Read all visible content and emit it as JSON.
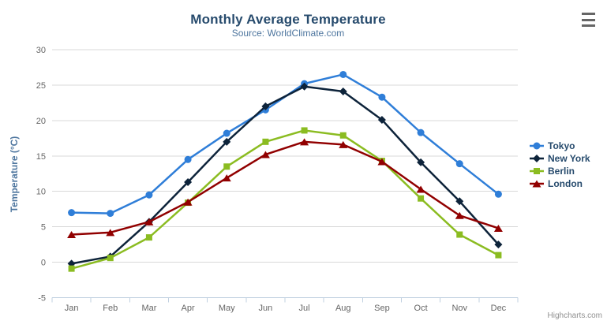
{
  "header": {
    "title": "Monthly Average Temperature",
    "subtitle": "Source: WorldClimate.com"
  },
  "menu_icon": "hamburger-icon",
  "credits_label": "Highcharts.com",
  "colors": {
    "title_text": "#274b6d",
    "subtitle_text": "#4d759e",
    "axis_title_text": "#4d759e",
    "axis_label_text": "#666666",
    "gridline": "#d8d8d8",
    "axis_line": "#c0d0e0",
    "legend_text": "#274b6d",
    "credits_text": "#909090",
    "menu_icon_bars": "#666666"
  },
  "chart_data": {
    "type": "line",
    "title": "Monthly Average Temperature",
    "subtitle": "Source: WorldClimate.com",
    "categories": [
      "Jan",
      "Feb",
      "Mar",
      "Apr",
      "May",
      "Jun",
      "Jul",
      "Aug",
      "Sep",
      "Oct",
      "Nov",
      "Dec"
    ],
    "xlabel": "",
    "ylabel": "Temperature (°C)",
    "ylim": [
      -5,
      30
    ],
    "ytick_step": 5,
    "yticks": [
      -5,
      0,
      5,
      10,
      15,
      20,
      25,
      30
    ],
    "grid": true,
    "legend_position": "right",
    "series": [
      {
        "name": "Tokyo",
        "color": "#2f7ed8",
        "marker": "circle",
        "values": [
          7.0,
          6.9,
          9.5,
          14.5,
          18.2,
          21.5,
          25.2,
          26.5,
          23.3,
          18.3,
          13.9,
          9.6
        ]
      },
      {
        "name": "New York",
        "color": "#0d233a",
        "marker": "diamond",
        "values": [
          -0.2,
          0.8,
          5.7,
          11.3,
          17.0,
          22.0,
          24.8,
          24.1,
          20.1,
          14.1,
          8.6,
          2.5
        ]
      },
      {
        "name": "Berlin",
        "color": "#8bbc21",
        "marker": "square",
        "values": [
          -0.9,
          0.6,
          3.5,
          8.4,
          13.5,
          17.0,
          18.6,
          17.9,
          14.3,
          9.0,
          3.9,
          1.0
        ]
      },
      {
        "name": "London",
        "color": "#910000",
        "marker": "triangle",
        "values": [
          3.9,
          4.2,
          5.7,
          8.5,
          11.9,
          15.2,
          17.0,
          16.6,
          14.2,
          10.3,
          6.6,
          4.8
        ]
      }
    ]
  }
}
